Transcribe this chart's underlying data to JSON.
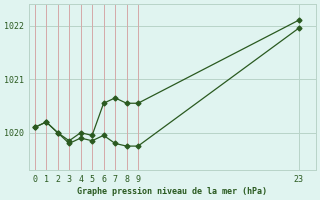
{
  "title": "Graphe pression niveau de la mer (hPa)",
  "background_color": "#e0f4f0",
  "line_color": "#2a5a20",
  "grid_color_h": "#b8d4c8",
  "grid_color_v": "#d4a8a8",
  "x_ticks_left": [
    0,
    1,
    2,
    3,
    4,
    5,
    6,
    7,
    8,
    9
  ],
  "x_tick_right": 23,
  "ylim": [
    1019.3,
    1022.4
  ],
  "yticks": [
    1020,
    1021,
    1022
  ],
  "series1": {
    "x": [
      0,
      1,
      2,
      3,
      4,
      5,
      6,
      7,
      8,
      9,
      23
    ],
    "y": [
      1020.1,
      1020.2,
      1020.0,
      1019.85,
      1020.0,
      1019.95,
      1020.55,
      1020.65,
      1020.55,
      1020.55,
      1022.1
    ]
  },
  "series2": {
    "x": [
      0,
      1,
      2,
      3,
      4,
      5,
      6,
      7,
      8,
      9,
      23
    ],
    "y": [
      1020.1,
      1020.2,
      1020.0,
      1019.8,
      1019.9,
      1019.85,
      1019.95,
      1019.8,
      1019.75,
      1019.75,
      1021.95
    ]
  },
  "marker": "D",
  "markersize": 2.5,
  "linewidth": 0.9
}
